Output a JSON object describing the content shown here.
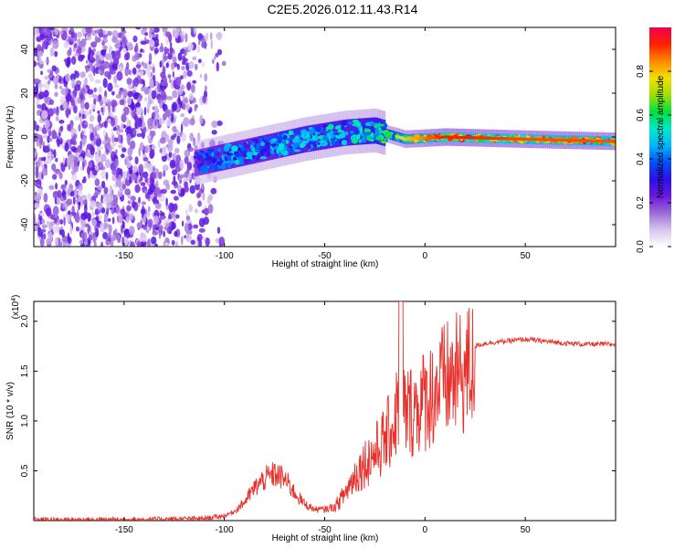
{
  "title": "C2E5.2026.012.11.43.R14",
  "colors": {
    "snr_line": "#e8302a",
    "colormap": [
      "#ffffff",
      "#d8c4ee",
      "#9b6ad8",
      "#6a18e0",
      "#2c10e8",
      "#0050ff",
      "#00b8ff",
      "#00e8c8",
      "#00e040",
      "#a0e000",
      "#f0e000",
      "#ff8800",
      "#ff2000",
      "#f00050"
    ]
  },
  "chart_data": [
    {
      "type": "heatmap",
      "name": "spectrogram",
      "xlabel": "Height of straight line (km)",
      "ylabel": "Frequency (Hz)",
      "xlim": [
        -195,
        95
      ],
      "ylim": [
        -50,
        50
      ],
      "x_ticks": [
        -150,
        -100,
        -50,
        0,
        50
      ],
      "y_ticks": [
        -40,
        -20,
        0,
        20,
        40
      ],
      "colorbar": {
        "label": "Normalized spectral amplitude",
        "range": [
          0,
          1
        ],
        "ticks": [
          "0.0",
          "0.2",
          "0.4",
          "0.6",
          "0.8"
        ],
        "tick_values": [
          0.0,
          0.2,
          0.4,
          0.6,
          0.8
        ]
      },
      "signal_track": [
        {
          "x": -115,
          "freq": -12,
          "amp": 0.35
        },
        {
          "x": -100,
          "freq": -9,
          "amp": 0.45
        },
        {
          "x": -80,
          "freq": -5,
          "amp": 0.45
        },
        {
          "x": -60,
          "freq": -1,
          "amp": 0.5
        },
        {
          "x": -40,
          "freq": 2,
          "amp": 0.5
        },
        {
          "x": -25,
          "freq": 3,
          "amp": 0.55
        },
        {
          "x": -10,
          "freq": -1,
          "amp": 0.75
        },
        {
          "x": 10,
          "freq": 0,
          "amp": 0.9
        },
        {
          "x": 50,
          "freq": -1,
          "amp": 0.85
        },
        {
          "x": 95,
          "freq": -2,
          "amp": 0.85
        }
      ]
    },
    {
      "type": "line",
      "name": "snr",
      "xlabel": "Height of straight line (km)",
      "ylabel": "SNR (10 * v/v)",
      "y_scale_label": "(x10",
      "y_scale_exp": "4",
      "y_scale_close": ")",
      "xlim": [
        -195,
        95
      ],
      "ylim": [
        0,
        2.2
      ],
      "x_ticks": [
        -150,
        -100,
        -50,
        0,
        50
      ],
      "y_ticks": [
        0.5,
        1.0,
        1.5,
        2.0
      ],
      "y_tick_labels": [
        "0.5",
        "1.0",
        "1.5",
        "2.0"
      ],
      "series": [
        {
          "name": "SNR",
          "x": [
            -195,
            -150,
            -110,
            -100,
            -95,
            -90,
            -85,
            -80,
            -75,
            -70,
            -65,
            -60,
            -55,
            -50,
            -45,
            -40,
            -35,
            -30,
            -25,
            -20,
            -15,
            -12,
            -10,
            -5,
            0,
            5,
            10,
            15,
            20,
            25,
            30,
            40,
            50,
            60,
            70,
            80,
            95
          ],
          "y": [
            0.01,
            0.01,
            0.02,
            0.05,
            0.1,
            0.2,
            0.35,
            0.45,
            0.5,
            0.45,
            0.3,
            0.18,
            0.12,
            0.12,
            0.15,
            0.3,
            0.5,
            0.65,
            0.75,
            0.9,
            1.1,
            1.5,
            1.2,
            1.25,
            1.35,
            1.45,
            1.55,
            1.6,
            1.65,
            1.75,
            1.78,
            1.8,
            1.82,
            1.8,
            1.78,
            1.77,
            1.77
          ]
        }
      ]
    }
  ]
}
